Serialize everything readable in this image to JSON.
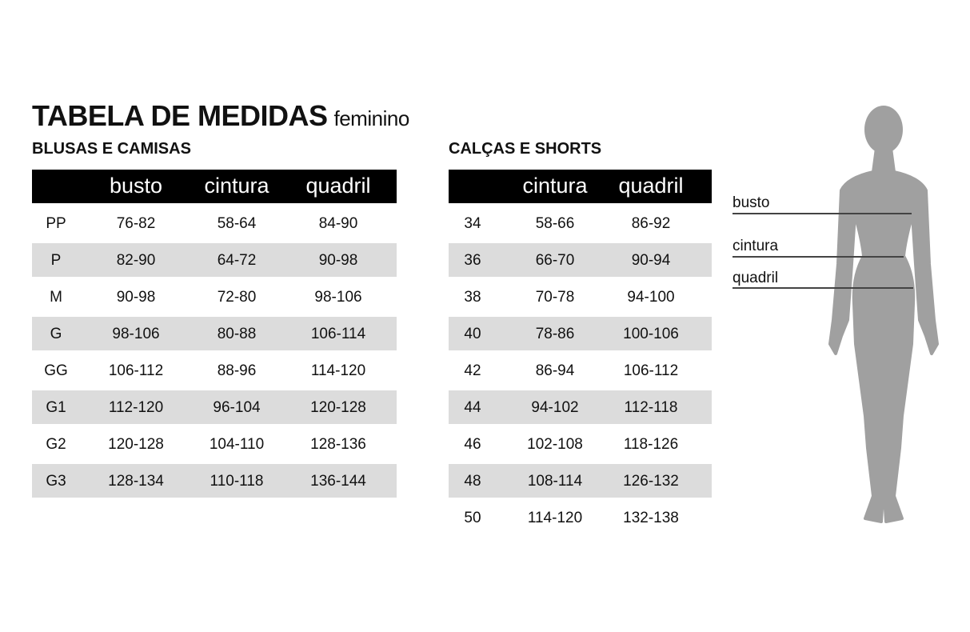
{
  "title": "TABELA DE MEDIDAS",
  "subtitle": "feminino",
  "colors": {
    "header_bg": "#000000",
    "stripe": "#dcdcdc",
    "figure": "#a0a0a0"
  },
  "blusas": {
    "heading": "BLUSAS E CAMISAS",
    "columns": [
      "",
      "busto",
      "cintura",
      "quadril"
    ],
    "rows": [
      [
        "PP",
        "76-82",
        "58-64",
        "84-90"
      ],
      [
        "P",
        "82-90",
        "64-72",
        "90-98"
      ],
      [
        "M",
        "90-98",
        "72-80",
        "98-106"
      ],
      [
        "G",
        "98-106",
        "80-88",
        "106-114"
      ],
      [
        "GG",
        "106-112",
        "88-96",
        "114-120"
      ],
      [
        "G1",
        "112-120",
        "96-104",
        "120-128"
      ],
      [
        "G2",
        "120-128",
        "104-110",
        "128-136"
      ],
      [
        "G3",
        "128-134",
        "110-118",
        "136-144"
      ]
    ]
  },
  "calcas": {
    "heading": "CALÇAS E SHORTS",
    "columns": [
      "",
      "cintura",
      "quadril"
    ],
    "rows": [
      [
        "34",
        "58-66",
        "86-92"
      ],
      [
        "36",
        "66-70",
        "90-94"
      ],
      [
        "38",
        "70-78",
        "94-100"
      ],
      [
        "40",
        "78-86",
        "100-106"
      ],
      [
        "42",
        "86-94",
        "106-112"
      ],
      [
        "44",
        "94-102",
        "112-118"
      ],
      [
        "46",
        "102-108",
        "118-126"
      ],
      [
        "48",
        "108-114",
        "126-132"
      ],
      [
        "50",
        "114-120",
        "132-138"
      ]
    ]
  },
  "figure": {
    "labels": [
      "busto",
      "cintura",
      "quadril"
    ]
  }
}
